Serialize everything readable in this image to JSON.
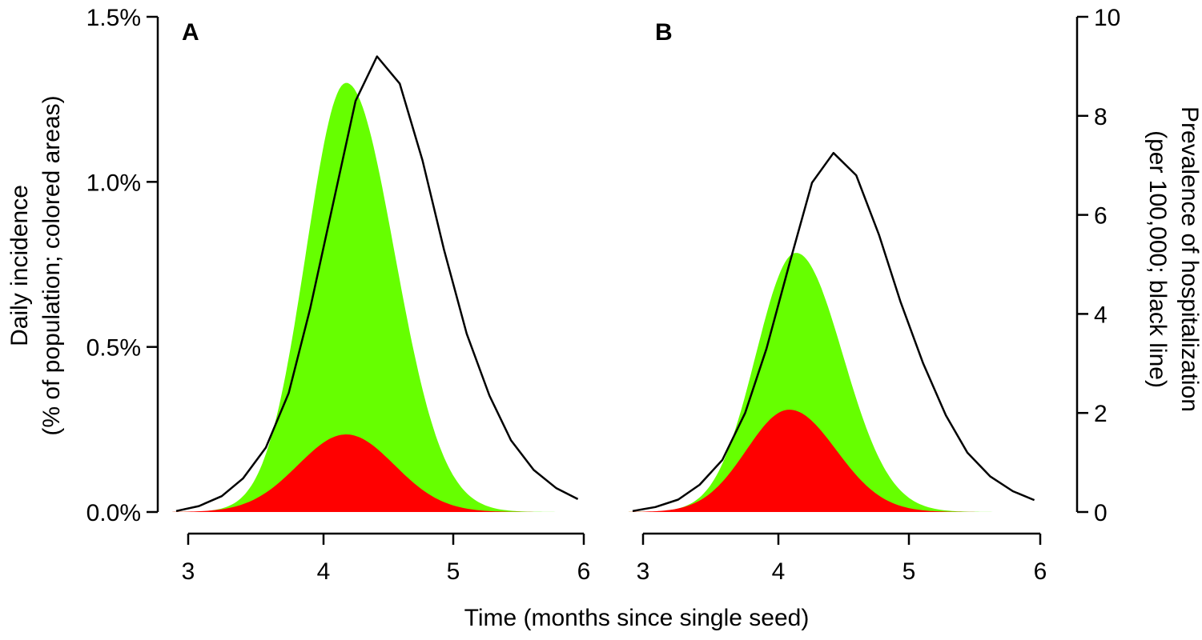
{
  "chart_data": {
    "type": "area",
    "xlabel": "Time (months since single seed)",
    "ylabel_left": [
      "Daily incidence",
      "(% of population; colored areas)"
    ],
    "ylabel_right": [
      "Prevalence of hospitalization",
      "(per 100,000; black line)"
    ],
    "x_range": [
      2.9,
      6.1
    ],
    "x_ticks": [
      "3",
      "4",
      "5",
      "6"
    ],
    "y_left_range": [
      0,
      1.5
    ],
    "y_left_ticks": [
      "0.0%",
      "0.5%",
      "1.0%",
      "1.5%"
    ],
    "y_right_range": [
      0,
      10
    ],
    "y_right_ticks": [
      "0",
      "2",
      "4",
      "6",
      "8",
      "10"
    ],
    "colors": {
      "green": "#66ff00",
      "red": "#ff0000",
      "line": "#000000"
    },
    "panels": [
      {
        "label": "A",
        "green_peak": {
          "x": 4.2,
          "y": 1.3,
          "sigma_left": 0.3,
          "sigma_right": 0.36
        },
        "red_peak": {
          "x": 4.2,
          "y": 0.235,
          "sigma_left": 0.36,
          "sigma_right": 0.36
        },
        "hospital_line": {
          "x": [
            2.93,
            3.1,
            3.27,
            3.43,
            3.6,
            3.77,
            3.93,
            4.1,
            4.27,
            4.43,
            4.6,
            4.77,
            4.93,
            5.1,
            5.27,
            5.43,
            5.6,
            5.77,
            5.93
          ],
          "y": [
            0.02,
            0.12,
            0.32,
            0.68,
            1.3,
            2.4,
            4.1,
            6.2,
            8.3,
            9.2,
            8.65,
            7.1,
            5.3,
            3.6,
            2.35,
            1.45,
            0.85,
            0.48,
            0.26
          ]
        }
      },
      {
        "label": "B",
        "green_peak": {
          "x": 4.15,
          "y": 0.785,
          "sigma_left": 0.3,
          "sigma_right": 0.35
        },
        "red_peak": {
          "x": 4.1,
          "y": 0.31,
          "sigma_left": 0.32,
          "sigma_right": 0.35
        },
        "hospital_line": {
          "x": [
            2.93,
            3.1,
            3.27,
            3.43,
            3.6,
            3.77,
            3.93,
            4.1,
            4.27,
            4.43,
            4.6,
            4.77,
            4.93,
            5.1,
            5.27,
            5.43,
            5.6,
            5.77,
            5.93
          ],
          "y": [
            0.02,
            0.1,
            0.25,
            0.55,
            1.05,
            2.0,
            3.3,
            5.0,
            6.65,
            7.25,
            6.8,
            5.6,
            4.25,
            3.0,
            1.95,
            1.2,
            0.72,
            0.42,
            0.24
          ]
        }
      }
    ]
  }
}
